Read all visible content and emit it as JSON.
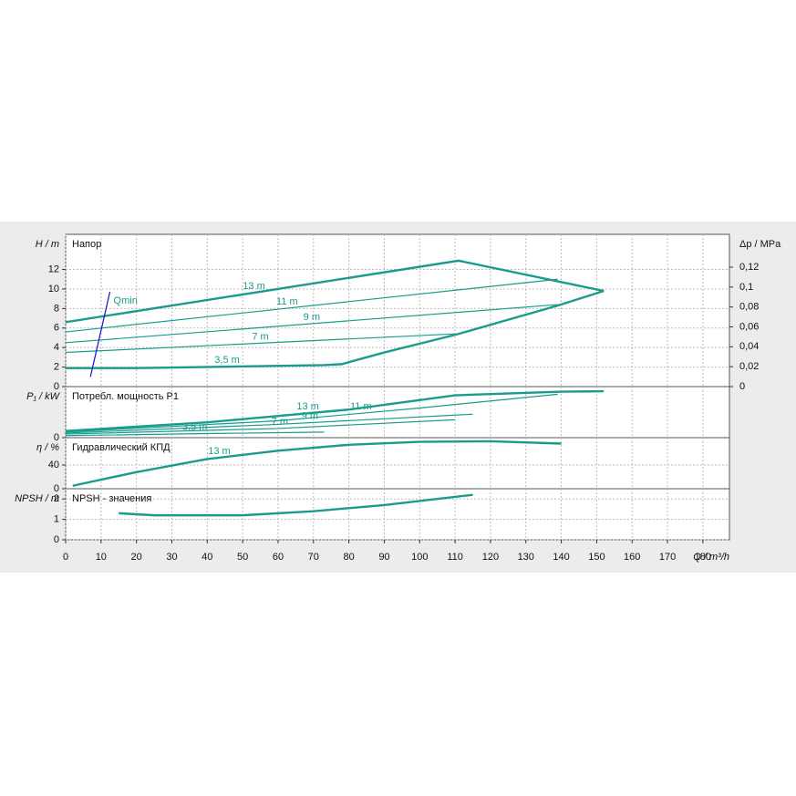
{
  "chart_data": [
    {
      "type": "line",
      "title": "Напор",
      "ylabel": "H / m",
      "y2label": "Δp / MPa",
      "xlim": [
        0,
        187.5
      ],
      "ylim": [
        0,
        15.6
      ],
      "yticks": [
        0,
        2,
        4,
        6,
        8,
        10,
        12
      ],
      "y2lim": [
        0,
        0.153
      ],
      "y2ticks": [
        0,
        {
          "value": 0.02,
          "label": "0,02"
        },
        {
          "value": 0.04,
          "label": "0,04"
        },
        {
          "value": 0.06,
          "label": "0,06"
        },
        {
          "value": 0.08,
          "label": "0,08"
        },
        {
          "value": 0.1,
          "label": "0,1"
        },
        {
          "value": 0.12,
          "label": "0,12"
        }
      ],
      "grid": true,
      "series": [
        {
          "name": "13 m",
          "color": "#1a9c8c",
          "x": [
            0,
            111,
            152
          ],
          "values": [
            6.6,
            12.9,
            9.8
          ]
        },
        {
          "name": "11 m",
          "color": "#1a9c8c",
          "x": [
            0,
            139
          ],
          "values": [
            5.6,
            11.0
          ]
        },
        {
          "name": "9 m",
          "color": "#1a9c8c",
          "x": [
            0,
            139
          ],
          "values": [
            4.5,
            8.4
          ]
        },
        {
          "name": "7 m",
          "color": "#1a9c8c",
          "x": [
            0,
            110
          ],
          "values": [
            3.5,
            5.4
          ]
        },
        {
          "name": "3,5 m",
          "color": "#1a9c8c",
          "x": [
            0,
            20,
            73,
            78,
            90,
            110,
            139,
            152
          ],
          "values": [
            1.9,
            1.9,
            2.2,
            2.3,
            3.5,
            5.3,
            8.3,
            9.8
          ]
        },
        {
          "name": "Qmin",
          "color": "#1010c8",
          "x": [
            7,
            12.5
          ],
          "values": [
            1.0,
            9.7
          ]
        }
      ]
    },
    {
      "type": "line",
      "title": "Потребл. мощность P1",
      "ylabel": "P₁ / kW",
      "xlim": [
        0,
        187.5
      ],
      "ylim": [
        0,
        10
      ],
      "yticks": [
        0
      ],
      "grid": true,
      "series": [
        {
          "name": "13 m",
          "color": "#1a9c8c",
          "x": [
            0,
            40,
            80,
            110,
            140,
            152
          ],
          "values": [
            1.3,
            3.0,
            5.5,
            8.3,
            9.0,
            9.1
          ]
        },
        {
          "name": "11 m",
          "color": "#1a9c8c",
          "x": [
            0,
            60,
            100,
            139
          ],
          "values": [
            1.1,
            3.3,
            5.8,
            8.5
          ]
        },
        {
          "name": "9 m",
          "color": "#1a9c8c",
          "x": [
            0,
            60,
            115
          ],
          "values": [
            0.9,
            2.6,
            4.6
          ]
        },
        {
          "name": "7 m",
          "color": "#1a9c8c",
          "x": [
            0,
            60,
            110
          ],
          "values": [
            0.7,
            1.8,
            3.5
          ]
        },
        {
          "name": "3,5 m",
          "color": "#1a9c8c",
          "x": [
            0,
            40,
            73
          ],
          "values": [
            0.4,
            0.8,
            1.1
          ]
        }
      ]
    },
    {
      "type": "line",
      "title": "Гидравлический КПД",
      "ylabel": "η / %",
      "xlim": [
        0,
        187.5
      ],
      "ylim": [
        0,
        86
      ],
      "yticks": [
        0,
        40
      ],
      "grid": true,
      "series": [
        {
          "name": "13 m",
          "color": "#1a9c8c",
          "x": [
            2,
            20,
            40,
            60,
            80,
            100,
            120,
            140
          ],
          "values": [
            5,
            28,
            50,
            64,
            74,
            79,
            80,
            76
          ]
        }
      ]
    },
    {
      "type": "line",
      "title": "NPSH - значения",
      "ylabel": "NPSH / m",
      "xlabel": "Q / m³/h",
      "xlim": [
        0,
        187.5
      ],
      "ylim": [
        0,
        2.5
      ],
      "yticks": [
        0,
        1,
        2
      ],
      "xticks": [
        0,
        10,
        20,
        30,
        40,
        50,
        60,
        70,
        80,
        90,
        100,
        110,
        120,
        130,
        140,
        150,
        160,
        170,
        180
      ],
      "grid": true,
      "series": [
        {
          "color": "#1a9c8c",
          "x": [
            15,
            25,
            50,
            70,
            90,
            110,
            115
          ],
          "values": [
            1.3,
            1.2,
            1.2,
            1.4,
            1.7,
            2.1,
            2.2
          ]
        }
      ]
    }
  ]
}
